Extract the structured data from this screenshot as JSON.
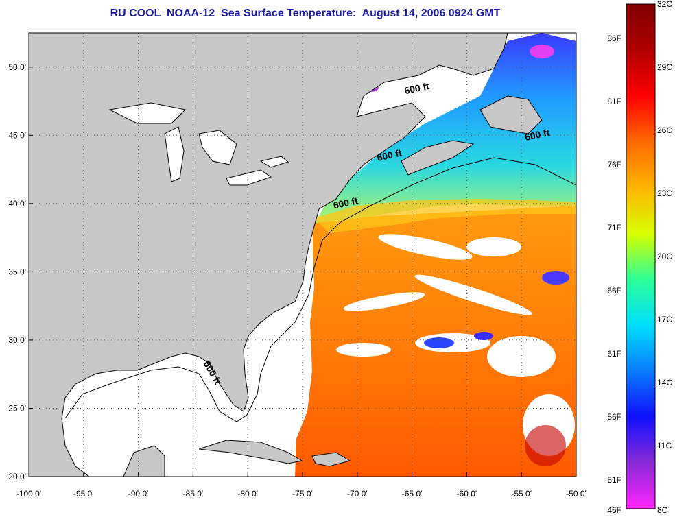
{
  "title": "RU COOL  NOAA-12  Sea Surface Temperature:  August 14, 2006 0924 GMT",
  "map": {
    "lon_range": [
      -100,
      -50
    ],
    "lat_range": [
      20,
      52.5
    ],
    "lon_ticks": [
      {
        "value": -100,
        "label": "-100 0'"
      },
      {
        "value": -95,
        "label": "-95 0'"
      },
      {
        "value": -90,
        "label": "-90 0'"
      },
      {
        "value": -85,
        "label": "-85 0'"
      },
      {
        "value": -80,
        "label": "-80 0'"
      },
      {
        "value": -75,
        "label": "-75 0'"
      },
      {
        "value": -70,
        "label": "-70 0'"
      },
      {
        "value": -65,
        "label": "-65 0'"
      },
      {
        "value": -60,
        "label": "-60 0'"
      },
      {
        "value": -55,
        "label": "-55 0'"
      },
      {
        "value": -50,
        "label": "-50 0'"
      }
    ],
    "lat_ticks": [
      {
        "value": 50,
        "label": "50 0'"
      },
      {
        "value": 45,
        "label": "45 0'"
      },
      {
        "value": 40,
        "label": "40 0'"
      },
      {
        "value": 35,
        "label": "35 0'"
      },
      {
        "value": 30,
        "label": "30 0'"
      },
      {
        "value": 25,
        "label": "25 0'"
      },
      {
        "value": 20,
        "label": "20 0'"
      }
    ],
    "isobath_labels": [
      {
        "text": "600 ft",
        "lon": -64.5,
        "lat": 48.2
      },
      {
        "text": "600 ft",
        "lon": -67.0,
        "lat": 43.3
      },
      {
        "text": "600 ft",
        "lon": -53.5,
        "lat": 44.8
      },
      {
        "text": "600 ft",
        "lon": -71.0,
        "lat": 39.8
      },
      {
        "text": "600 ft",
        "lon": -83.5,
        "lat": 27.5
      }
    ],
    "colors": {
      "land": "#c8c8c8",
      "water_nodata": "#ffffff",
      "grid": "#555555"
    }
  },
  "colorbar": {
    "left_labels": [
      "86F",
      "81F",
      "76F",
      "71F",
      "66F",
      "61F",
      "56F",
      "51F",
      "46F"
    ],
    "right_labels": [
      "32C",
      "29C",
      "26C",
      "23C",
      "20C",
      "17C",
      "14C",
      "11C",
      "8C"
    ],
    "stops": [
      "#ff26ff",
      "#8a2bd6",
      "#1010ff",
      "#0a7cff",
      "#00e0ff",
      "#2dff96",
      "#d8ff00",
      "#ffb400",
      "#ff6a00",
      "#ff0000",
      "#b00000",
      "#800000"
    ]
  }
}
